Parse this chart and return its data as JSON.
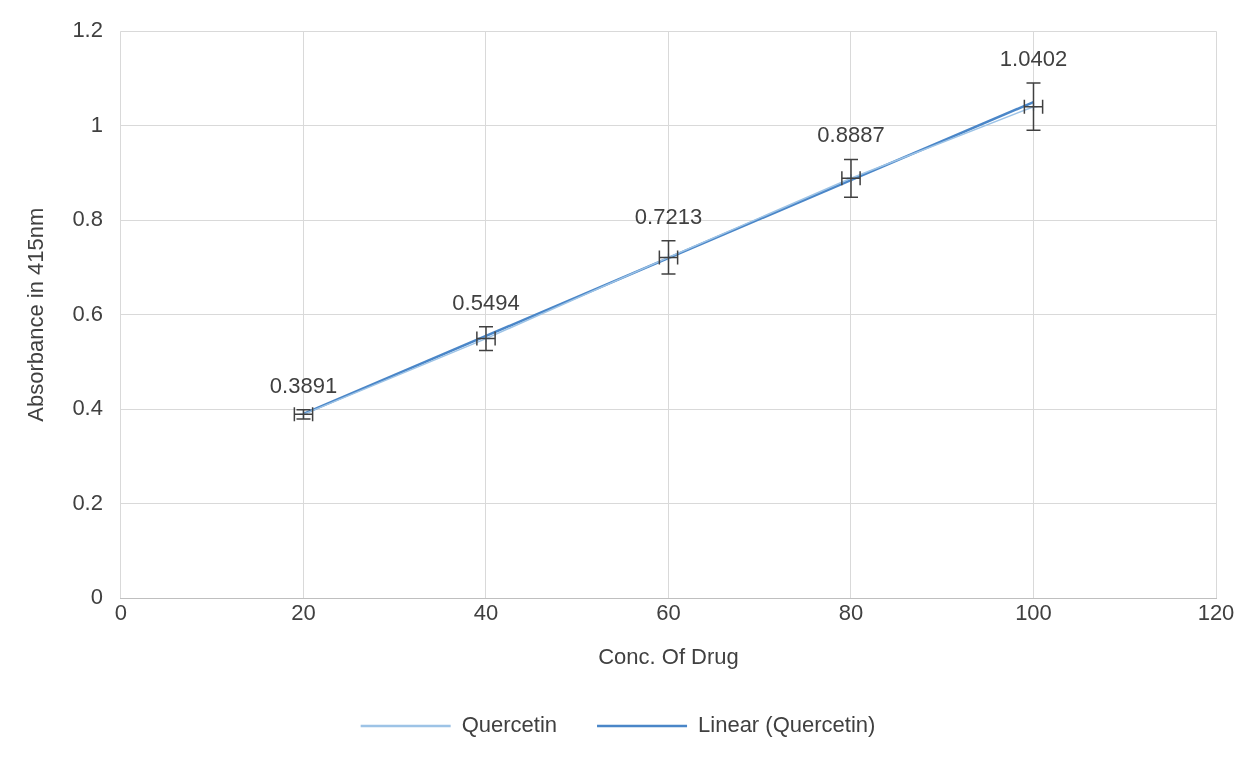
{
  "chart_data": {
    "type": "line",
    "xlabel": "Conc. Of Drug",
    "ylabel": "Absorbance in 415nm",
    "xlim": [
      0,
      120
    ],
    "xticks": [
      0,
      20,
      40,
      60,
      80,
      100,
      120
    ],
    "ylim": [
      0,
      1.2
    ],
    "yticks": [
      0,
      0.2,
      0.4,
      0.6,
      0.8,
      1,
      1.2
    ],
    "grid": true,
    "legend": "bottom",
    "series": [
      {
        "name": "Quercetin",
        "color": "#9dc3e6",
        "marker": "cross",
        "x": [
          20,
          40,
          60,
          80,
          100
        ],
        "values": [
          0.3891,
          0.5494,
          0.7213,
          0.8887,
          1.0402
        ],
        "value_labels": [
          "0.3891",
          "0.5494",
          "0.7213",
          "0.8887",
          "1.0402"
        ],
        "errors": [
          0.01,
          0.025,
          0.035,
          0.04,
          0.05
        ],
        "xerrors": [
          1,
          1,
          1,
          1,
          1
        ]
      },
      {
        "name": "Linear (Quercetin)",
        "color": "#4a86c8",
        "x": [
          20,
          100
        ],
        "values": [
          0.39,
          1.05
        ]
      }
    ]
  }
}
